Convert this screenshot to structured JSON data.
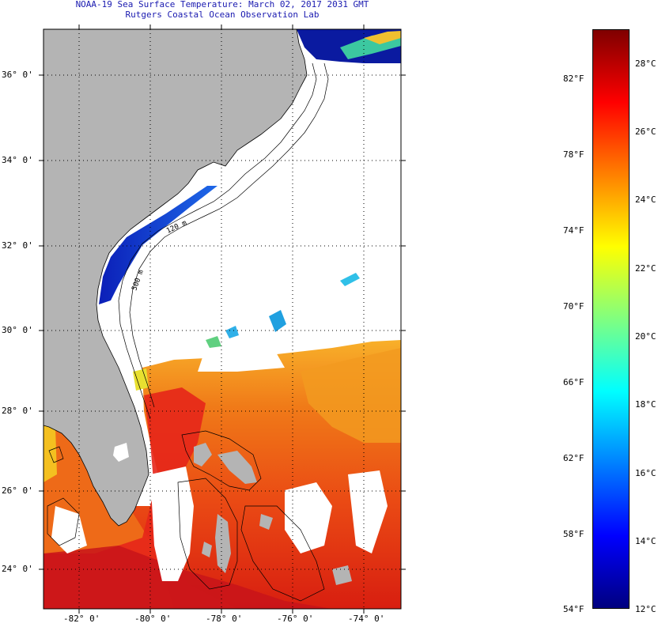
{
  "title": "NOAA-19 Sea Surface Temperature:  March 02, 2017 2031 GMT",
  "subtitle": "Rutgers Coastal Ocean Observation Lab",
  "map": {
    "lat_labels": [
      "36° 0'",
      "34° 0'",
      "32° 0'",
      "30° 0'",
      "28° 0'",
      "26° 0'",
      "24° 0'"
    ],
    "lon_labels": [
      "-82° 0'",
      "-80° 0'",
      "-78° 0'",
      "-76° 0'",
      "-74° 0'"
    ],
    "contour_labels": [
      "120 m",
      "500 m"
    ],
    "colors": {
      "land": "#b4b4b4",
      "clouds": "#ffffff",
      "cold": "#0a1a9c",
      "warm": "#e02a10",
      "grid": "#000000"
    }
  },
  "colorbar": {
    "min_f": "54°F",
    "min_c": "12°C",
    "f_labels": [
      "82°F",
      "78°F",
      "74°F",
      "70°F",
      "66°F",
      "62°F",
      "58°F"
    ],
    "c_labels": [
      "28°C",
      "26°C",
      "24°C",
      "22°C",
      "20°C",
      "18°C",
      "16°C",
      "14°C"
    ],
    "colors": [
      "#00007f",
      "#0000ff",
      "#0080ff",
      "#00ffff",
      "#80ff80",
      "#ffff00",
      "#ff8000",
      "#ff0000",
      "#7f0000"
    ]
  }
}
